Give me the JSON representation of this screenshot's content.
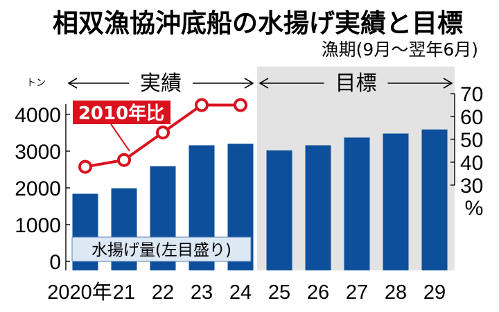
{
  "chart_data": {
    "type": "bar",
    "title": "相双漁協沖底船の水揚げ実績と目標",
    "subtitle": "漁期(9月～翌年6月)",
    "categories": [
      "2020年",
      "21",
      "22",
      "23",
      "24",
      "25",
      "26",
      "27",
      "28",
      "29"
    ],
    "series": [
      {
        "name": "水揚げ量(左目盛り)",
        "axis": "left",
        "values": [
          1840,
          1990,
          2590,
          3160,
          3200,
          3020,
          3160,
          3370,
          3480,
          3590
        ],
        "color": "#0d4f9b"
      },
      {
        "name": "2010年比",
        "axis": "right",
        "type": "line",
        "values": [
          38,
          41,
          53,
          65,
          65,
          null,
          null,
          null,
          null,
          null
        ],
        "color": "#d9121e"
      }
    ],
    "left_axis": {
      "unit": "トン",
      "ticks": [
        "0",
        "1000",
        "2000",
        "3000",
        "4000"
      ],
      "ylim": [
        0,
        4500
      ]
    },
    "right_axis": {
      "unit": "%",
      "ticks": [
        "30",
        "40",
        "50",
        "60",
        "70"
      ],
      "ylim": [
        30,
        70
      ]
    },
    "periods": [
      {
        "label": "実績",
        "from": 0,
        "to": 4,
        "shaded": false
      },
      {
        "label": "目標",
        "from": 5,
        "to": 9,
        "shaded": true,
        "shade_color": "#e3e3e3"
      }
    ],
    "grid": false,
    "legend": "inline"
  }
}
